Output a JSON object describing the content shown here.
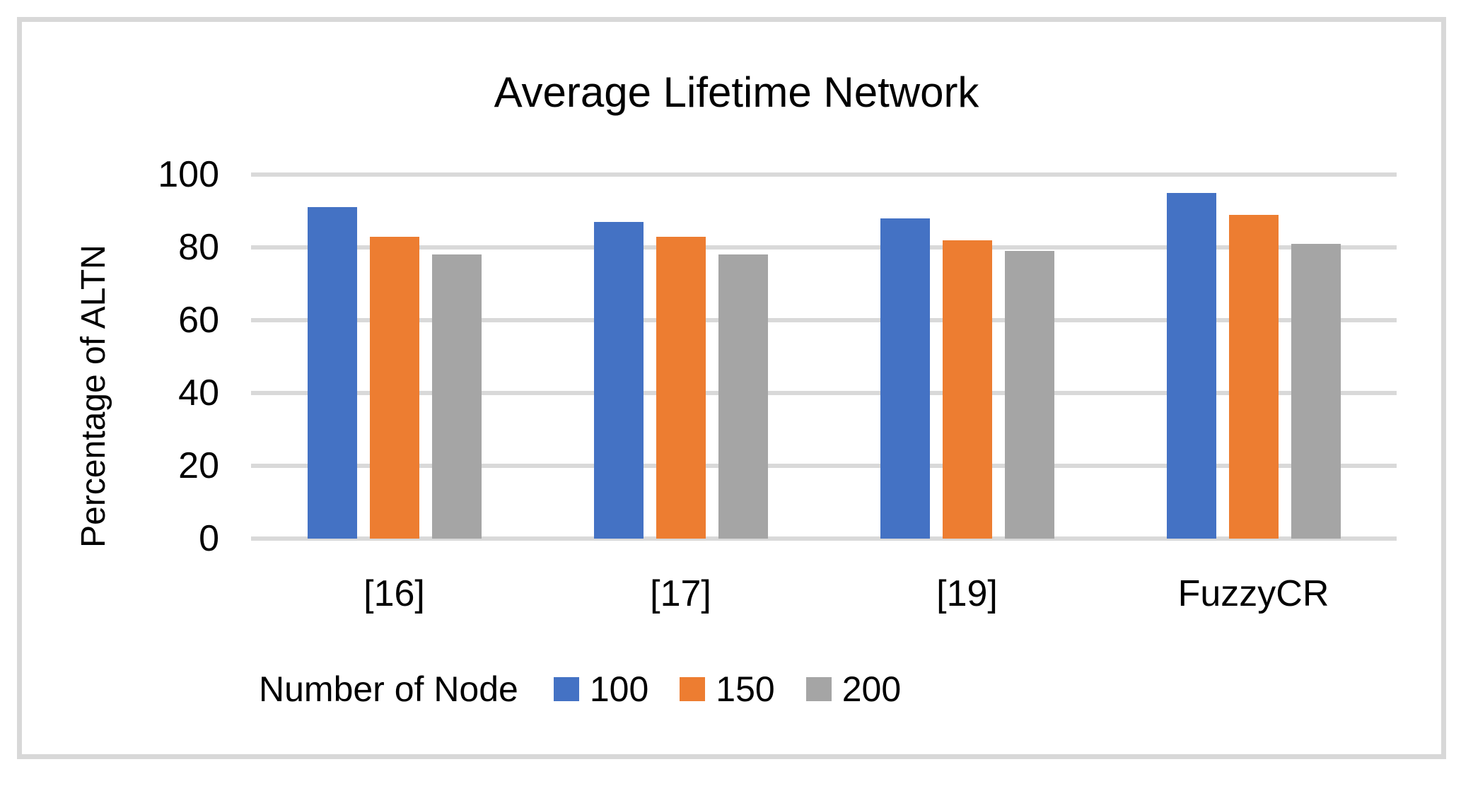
{
  "chart_data": {
    "type": "bar",
    "title": "Average Lifetime Network",
    "xlabel": "",
    "ylabel": "Percentage of ALTN",
    "categories": [
      "[16]",
      "[17]",
      "[19]",
      "FuzzyCR"
    ],
    "series": [
      {
        "name": "100",
        "color": "#4472C4",
        "values": [
          91,
          87,
          88,
          95
        ]
      },
      {
        "name": "150",
        "color": "#ED7D31",
        "values": [
          83,
          83,
          82,
          89
        ]
      },
      {
        "name": "200",
        "color": "#A5A5A5",
        "values": [
          78,
          78,
          79,
          81
        ]
      }
    ],
    "ylim": [
      0,
      100
    ],
    "yticks": [
      0,
      20,
      40,
      60,
      80,
      100
    ],
    "grid": true,
    "gridline_color": "#D9D9D9",
    "frame_border_color": "#D8D8D8",
    "legend_title": "Number of Node",
    "legend_position": "bottom"
  }
}
